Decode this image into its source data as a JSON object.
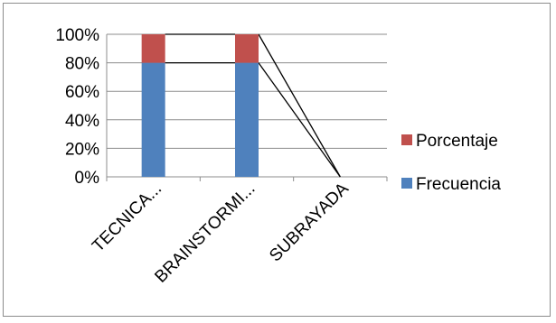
{
  "chart_data": {
    "type": "bar",
    "stacked": "percent",
    "categories": [
      "TECNICA...",
      "BRAINSTORMI...",
      "SUBRAYADA"
    ],
    "series": [
      {
        "name": "Frecuencia",
        "values": [
          80,
          80,
          0
        ],
        "color": "#4f81bd"
      },
      {
        "name": "Porcentaje",
        "values": [
          20,
          20,
          0
        ],
        "color": "#c0504d"
      }
    ],
    "ylim": [
      0,
      100
    ],
    "yticks": [
      "0%",
      "20%",
      "40%",
      "60%",
      "80%",
      "100%"
    ],
    "grid": true,
    "legend_position": "right",
    "series_lines": true
  }
}
